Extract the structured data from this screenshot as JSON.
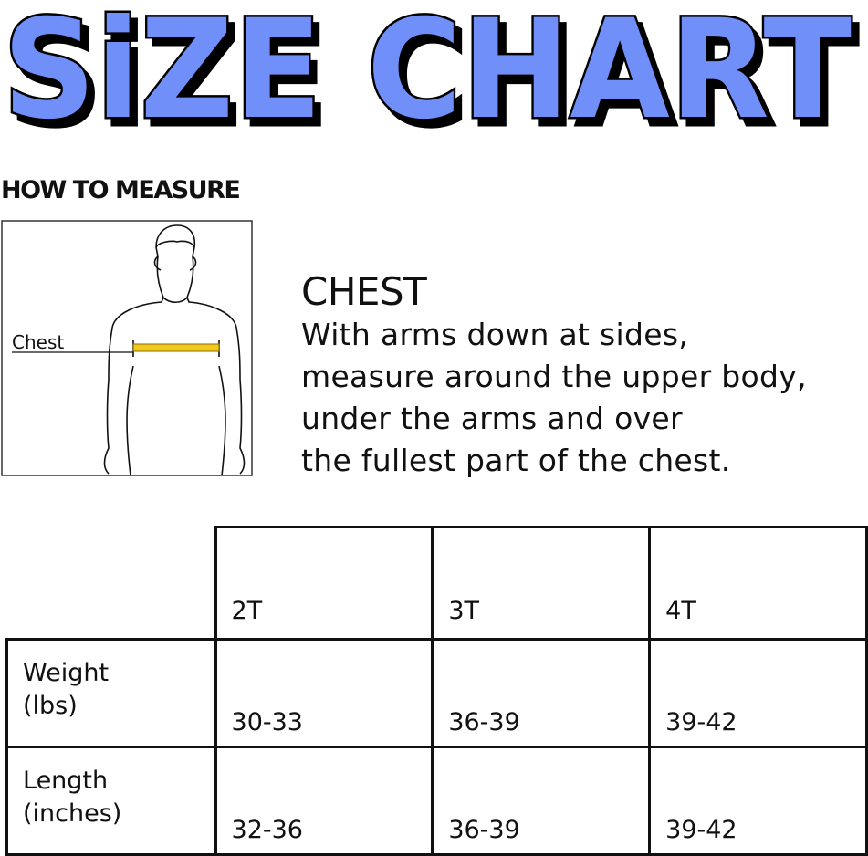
{
  "title": "SiZE CHART",
  "colors": {
    "title_fill": "#6f8ff8",
    "tape": "#f2c81e"
  },
  "how_to_measure": "HOW TO MEASURE",
  "figure": {
    "label": "Chest"
  },
  "chest": {
    "title": "CHEST",
    "lines": [
      "With arms down at sides,",
      "measure around the upper body,",
      "under the arms and over",
      "the fullest part of the chest."
    ]
  },
  "table": {
    "sizes": [
      "2T",
      "3T",
      "4T"
    ],
    "rows": [
      {
        "label1": "Weight",
        "label2": "(lbs)",
        "values": [
          "30-33",
          "36-39",
          "39-42"
        ]
      },
      {
        "label1": "Length",
        "label2": "(inches)",
        "values": [
          "32-36",
          "36-39",
          "39-42"
        ]
      }
    ]
  }
}
